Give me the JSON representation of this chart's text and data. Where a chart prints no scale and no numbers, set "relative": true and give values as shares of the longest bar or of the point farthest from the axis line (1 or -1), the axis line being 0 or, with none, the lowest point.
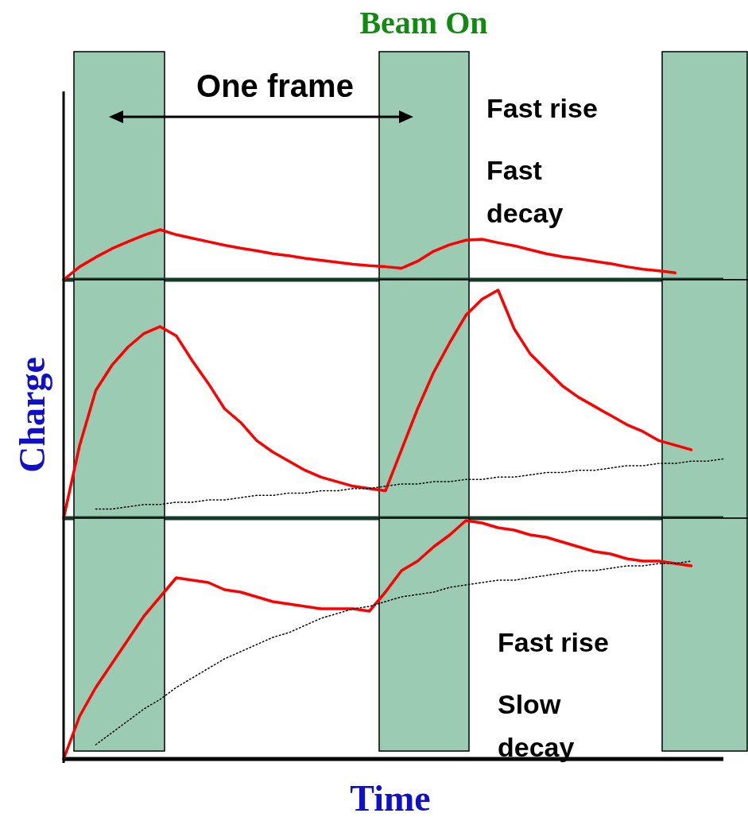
{
  "chart_data": [
    {
      "type": "line",
      "relative": true,
      "categories": [
        null,
        null,
        null,
        null,
        null,
        null,
        null,
        null,
        null,
        null,
        null,
        null,
        null,
        null,
        null,
        null,
        null,
        null,
        null,
        null,
        null,
        null,
        null,
        null,
        null,
        null,
        null,
        null,
        null,
        null,
        null,
        null,
        null,
        null,
        null,
        null,
        null,
        null,
        null,
        null,
        null,
        null
      ],
      "annotations": [
        "Beam On",
        "One frame",
        "Fast rise",
        "Fast decay"
      ],
      "series": [
        {
          "color": "#ff0000",
          "values": [
            0,
            0.26,
            0.45,
            0.62,
            0.76,
            0.89,
            1,
            0.9,
            0.83,
            0.76,
            0.69,
            0.63,
            0.58,
            0.52,
            0.48,
            0.43,
            0.39,
            0.35,
            0.31,
            0.28,
            0.26,
            0.23,
            0.37,
            0.57,
            0.7,
            0.79,
            0.81,
            0.74,
            0.68,
            0.6,
            0.52,
            0.46,
            0.42,
            0.37,
            0.32,
            0.26,
            0.21,
            0.18,
            0.14,
            null,
            null,
            null
          ]
        }
      ]
    },
    {
      "type": "line",
      "relative": true,
      "ylabel": "Charge",
      "categories": [
        null,
        null,
        null,
        null,
        null,
        null,
        null,
        null,
        null,
        null,
        null,
        null,
        null,
        null,
        null,
        null,
        null,
        null,
        null,
        null,
        null,
        null,
        null,
        null,
        null,
        null,
        null,
        null,
        null,
        null,
        null,
        null,
        null,
        null,
        null,
        null,
        null,
        null,
        null,
        null,
        null,
        null
      ],
      "series": [
        {
          "color": "#ff0000",
          "values": [
            0,
            0.32,
            0.56,
            0.67,
            0.75,
            0.81,
            0.84,
            0.8,
            0.69,
            0.59,
            0.48,
            0.42,
            0.34,
            0.29,
            0.25,
            0.21,
            0.18,
            0.16,
            0.14,
            0.13,
            0.12,
            0.3,
            0.48,
            0.64,
            0.77,
            0.89,
            0.96,
            1,
            0.83,
            0.72,
            0.65,
            0.58,
            0.53,
            0.49,
            0.45,
            0.41,
            0.38,
            0.34,
            0.32,
            0.3,
            null,
            null
          ]
        },
        {
          "color": "#000000",
          "line_style": "dotted",
          "values": [
            null,
            null,
            0.04,
            0.04,
            0.05,
            0.06,
            0.06,
            0.07,
            0.07,
            0.08,
            0.08,
            0.09,
            0.1,
            0.1,
            0.11,
            0.11,
            0.12,
            0.12,
            0.13,
            0.13,
            0.14,
            0.15,
            0.15,
            0.16,
            0.16,
            0.17,
            0.17,
            0.18,
            0.18,
            0.19,
            0.2,
            0.2,
            0.21,
            0.21,
            0.22,
            0.23,
            0.23,
            0.24,
            0.24,
            0.25,
            0.25,
            0.26
          ]
        }
      ]
    },
    {
      "type": "line",
      "relative": true,
      "xlabel": "Time",
      "categories": [
        null,
        null,
        null,
        null,
        null,
        null,
        null,
        null,
        null,
        null,
        null,
        null,
        null,
        null,
        null,
        null,
        null,
        null,
        null,
        null,
        null,
        null,
        null,
        null,
        null,
        null,
        null,
        null,
        null,
        null,
        null,
        null,
        null,
        null,
        null,
        null,
        null,
        null,
        null,
        null,
        null,
        null
      ],
      "annotations": [
        "Fast rise",
        "Slow decay"
      ],
      "series": [
        {
          "color": "#ff0000",
          "values": [
            0,
            0.18,
            0.3,
            0.4,
            0.5,
            0.6,
            0.68,
            0.76,
            0.75,
            0.74,
            0.71,
            0.7,
            0.68,
            0.66,
            0.65,
            0.64,
            0.63,
            0.63,
            0.63,
            0.62,
            0.7,
            0.79,
            0.83,
            0.89,
            0.94,
            1,
            0.99,
            0.97,
            0.96,
            0.94,
            0.93,
            0.91,
            0.89,
            0.87,
            0.86,
            0.84,
            0.83,
            0.83,
            0.82,
            0.81,
            null,
            null
          ]
        },
        {
          "color": "#000000",
          "line_style": "dotted",
          "values": [
            null,
            null,
            0.06,
            0.11,
            0.16,
            0.21,
            0.25,
            0.3,
            0.34,
            0.38,
            0.42,
            0.45,
            0.48,
            0.51,
            0.53,
            0.56,
            0.59,
            0.61,
            0.63,
            0.64,
            0.66,
            0.68,
            0.69,
            0.7,
            0.72,
            0.73,
            0.74,
            0.75,
            0.75,
            0.76,
            0.77,
            0.78,
            0.79,
            0.79,
            0.8,
            0.81,
            0.81,
            0.82,
            0.82,
            0.83,
            null,
            null
          ]
        }
      ]
    }
  ]
}
